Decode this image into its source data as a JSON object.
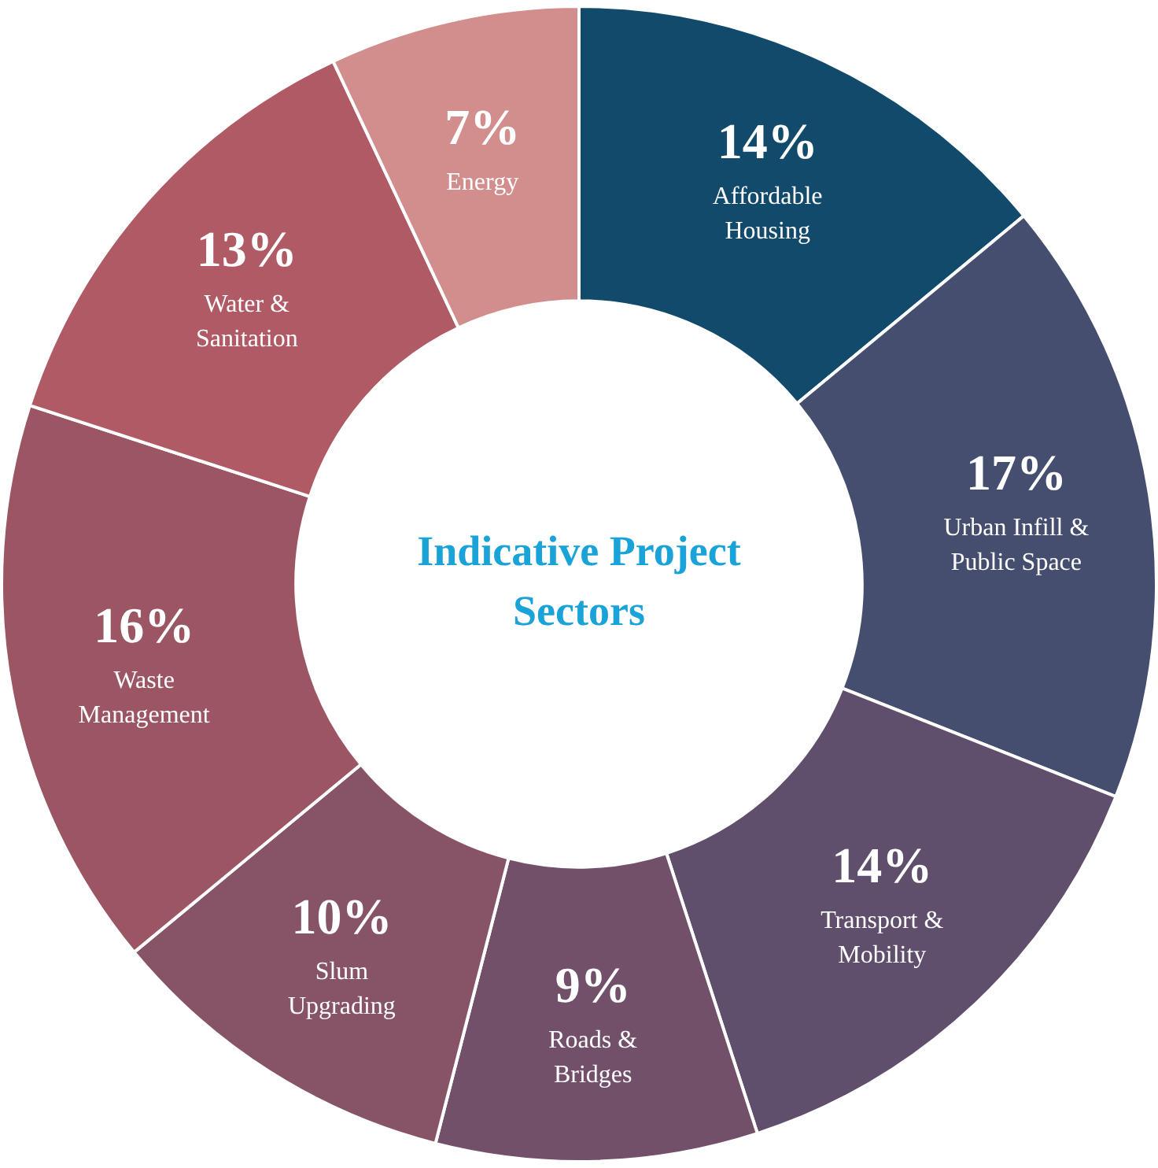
{
  "chart_data": {
    "type": "donut",
    "title": "Indicative Project Sectors",
    "categories": [
      "Affordable Housing",
      "Urban Infill & Public Space",
      "Transport & Mobility",
      "Roads & Bridges",
      "Slum Upgrading",
      "Waste Management",
      "Water & Sanitation",
      "Energy"
    ],
    "values": [
      14,
      17,
      14,
      9,
      10,
      16,
      13,
      7
    ],
    "value_labels": [
      "14%",
      "17%",
      "14%",
      "9%",
      "10%",
      "16%",
      "13%",
      "7%"
    ],
    "colors": [
      "#124a6c",
      "#454e6e",
      "#5f4e6c",
      "#72506a",
      "#875467",
      "#9b5563",
      "#b05a65",
      "#d18e8c"
    ],
    "legend": false
  }
}
